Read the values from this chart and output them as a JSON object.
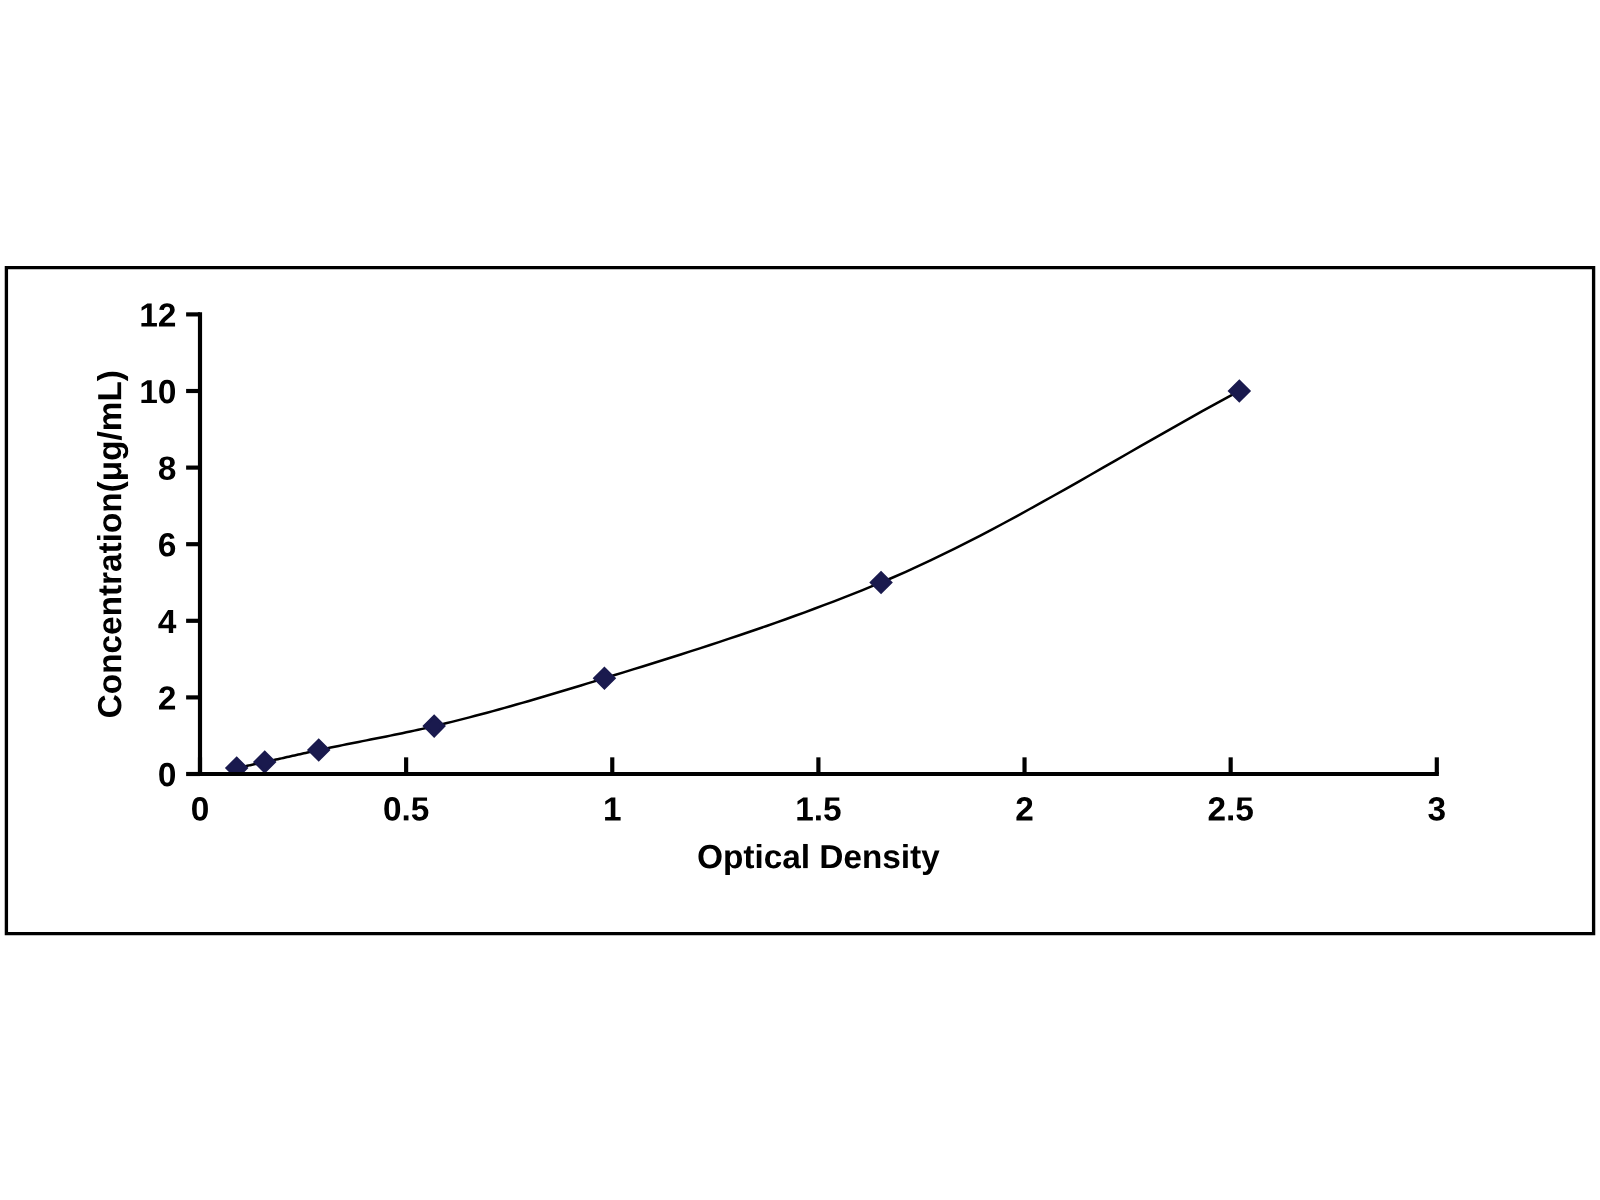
{
  "chart_data": {
    "type": "line",
    "xlabel": "Optical Density",
    "ylabel": "Concentration(μg/mL)",
    "x": [
      0.089,
      0.157,
      0.288,
      0.568,
      0.981,
      1.652,
      2.521
    ],
    "series": [
      {
        "color": "#1a1a4e",
        "values": [
          0.156,
          0.312,
          0.625,
          1.25,
          2.5,
          5,
          10
        ]
      }
    ],
    "marker": "diamond",
    "line_style": "solid",
    "grid": false,
    "legend": false,
    "xlim": [
      0,
      3
    ],
    "xticks": [
      0,
      0.5,
      1,
      1.5,
      2,
      2.5,
      3
    ],
    "ylim": [
      0,
      12
    ],
    "yticks": [
      0,
      2,
      4,
      6,
      8,
      10,
      12
    ]
  }
}
